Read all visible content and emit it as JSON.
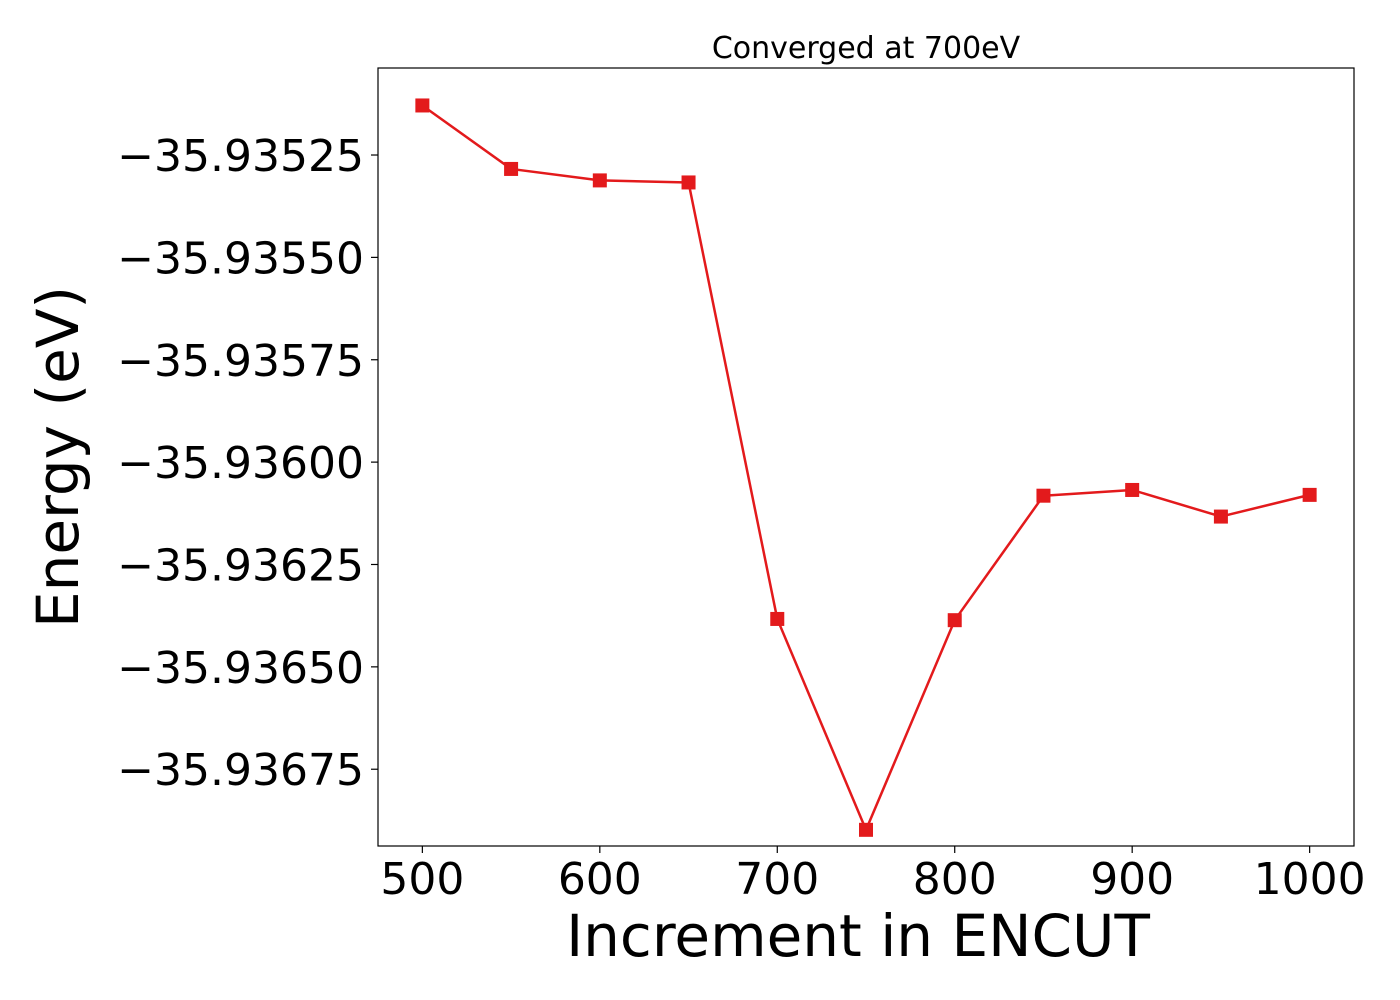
{
  "chart_data": {
    "type": "line",
    "title": "Converged at 700eV",
    "xlabel": "Increment in ENCUT",
    "ylabel": "Energy (eV)",
    "x": [
      500,
      550,
      600,
      650,
      700,
      750,
      800,
      850,
      900,
      950,
      1000
    ],
    "series": [
      {
        "values": [
          -35.935129,
          -35.935284,
          -35.935312,
          -35.935317,
          -35.936383,
          -35.936898,
          -35.936386,
          -35.936082,
          -35.936068,
          -35.936133,
          -35.93608
        ]
      }
    ],
    "xticks": [
      500,
      600,
      700,
      800,
      900,
      1000
    ],
    "xtick_labels": [
      "500",
      "600",
      "700",
      "800",
      "900",
      "1000"
    ],
    "yticks": [
      -35.93525,
      -35.9355,
      -35.93575,
      -35.936,
      -35.93625,
      -35.9365,
      -35.93675
    ],
    "ytick_labels": [
      "−35.93525",
      "−35.93550",
      "−35.93575",
      "−35.93600",
      "−35.93625",
      "−35.93650",
      "−35.93675"
    ],
    "xlim": [
      475,
      1025
    ],
    "ylim": [
      -35.9369375,
      -35.9350375
    ],
    "grid": false,
    "marker": "square",
    "color": "#e31a1c"
  }
}
